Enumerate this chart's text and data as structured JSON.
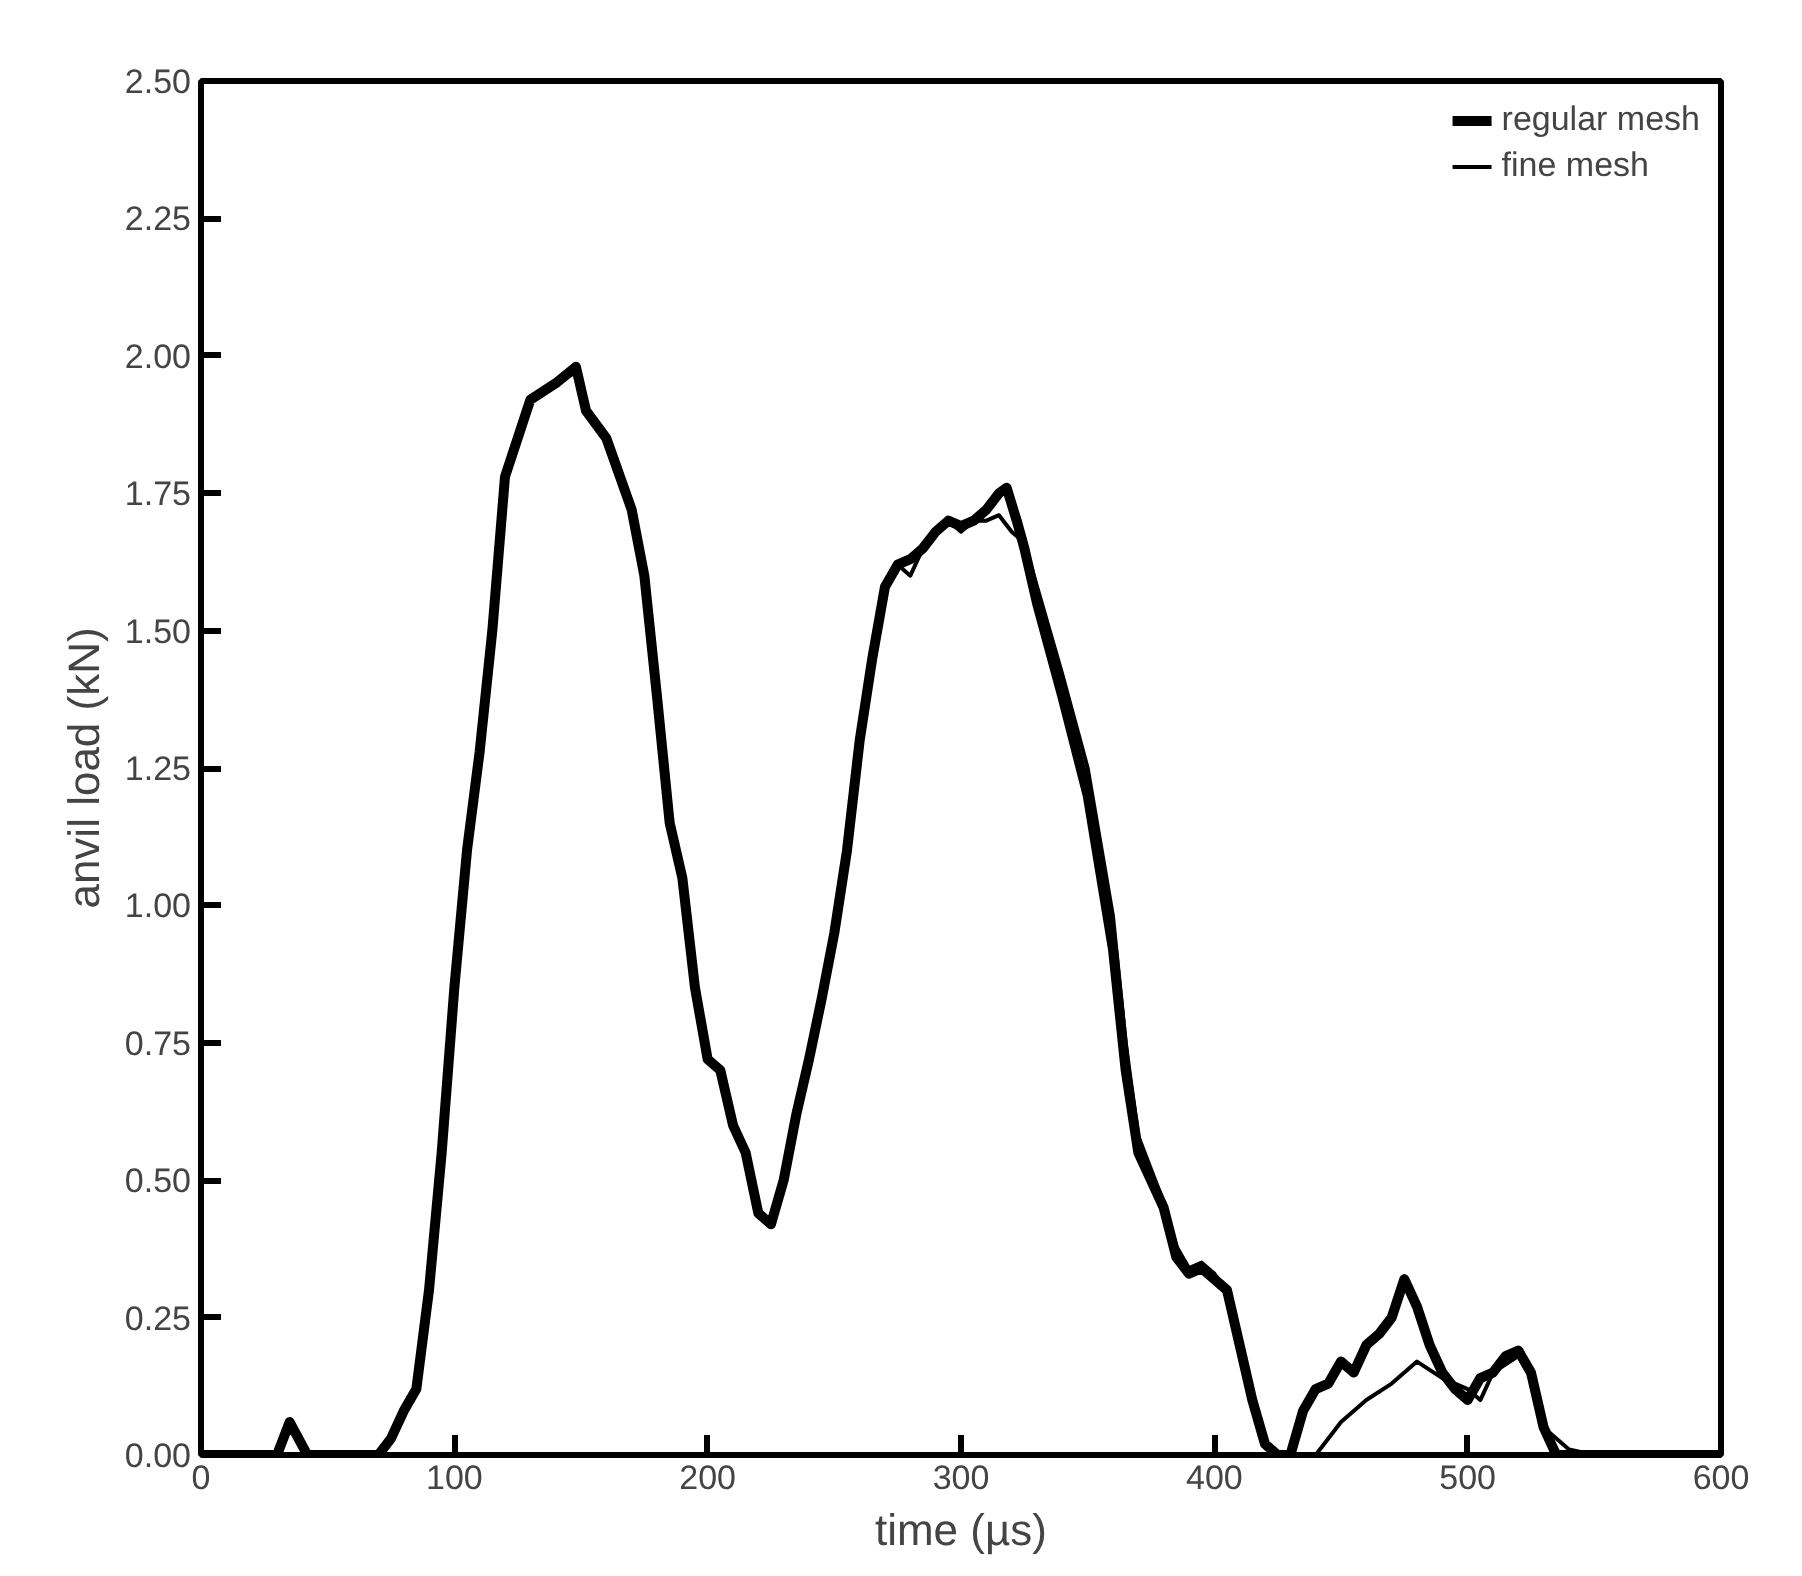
{
  "chart_data": {
    "type": "line",
    "xlabel": "time (µs)",
    "ylabel": "anvil load (kN)",
    "xlim": [
      0,
      600
    ],
    "ylim": [
      0,
      2.5
    ],
    "xticks": [
      0,
      100,
      200,
      300,
      400,
      500,
      600
    ],
    "yticks": [
      {
        "value": 0,
        "label": "0.00"
      },
      {
        "value": 0.25,
        "label": "0.25"
      },
      {
        "value": 0.5,
        "label": "0.50"
      },
      {
        "value": 0.75,
        "label": "0.75"
      },
      {
        "value": 1,
        "label": "1.00"
      },
      {
        "value": 1.25,
        "label": "1.25"
      },
      {
        "value": 1.5,
        "label": "1.50"
      },
      {
        "value": 1.75,
        "label": "1.75"
      },
      {
        "value": 2,
        "label": "2.00"
      },
      {
        "value": 2.25,
        "label": "2.25"
      },
      {
        "value": 2.5,
        "label": "2.50"
      }
    ],
    "grid": false,
    "legend": "top right",
    "line_style": "solid",
    "series": [
      {
        "name": "regular mesh",
        "color": "#000000",
        "x": [
          0,
          30,
          35,
          42,
          70,
          75,
          80,
          85,
          90,
          95,
          100,
          105,
          110,
          115,
          120,
          125,
          130,
          140,
          148,
          152,
          160,
          170,
          175,
          180,
          185,
          190,
          195,
          200,
          205,
          210,
          215,
          220,
          225,
          230,
          235,
          240,
          245,
          250,
          255,
          260,
          265,
          270,
          275,
          280,
          285,
          290,
          295,
          300,
          305,
          310,
          315,
          318,
          322,
          325,
          330,
          340,
          350,
          360,
          365,
          370,
          375,
          380,
          385,
          390,
          395,
          400,
          405,
          410,
          415,
          420,
          425,
          430,
          435,
          440,
          445,
          450,
          455,
          460,
          465,
          470,
          475,
          480,
          485,
          490,
          495,
          500,
          505,
          510,
          515,
          520,
          525,
          530,
          535,
          600
        ],
        "values": [
          0,
          0,
          0.06,
          0,
          0,
          0.03,
          0.08,
          0.12,
          0.3,
          0.55,
          0.85,
          1.1,
          1.28,
          1.5,
          1.78,
          1.85,
          1.92,
          1.95,
          1.98,
          1.9,
          1.85,
          1.72,
          1.6,
          1.38,
          1.15,
          1.05,
          0.85,
          0.72,
          0.7,
          0.6,
          0.55,
          0.44,
          0.42,
          0.5,
          0.62,
          0.72,
          0.83,
          0.95,
          1.1,
          1.3,
          1.45,
          1.58,
          1.62,
          1.63,
          1.65,
          1.68,
          1.7,
          1.69,
          1.7,
          1.72,
          1.75,
          1.76,
          1.7,
          1.65,
          1.55,
          1.38,
          1.2,
          0.92,
          0.7,
          0.55,
          0.5,
          0.45,
          0.36,
          0.33,
          0.34,
          0.32,
          0.3,
          0.2,
          0.1,
          0.02,
          0,
          0,
          0.08,
          0.12,
          0.13,
          0.17,
          0.15,
          0.2,
          0.22,
          0.25,
          0.32,
          0.27,
          0.2,
          0.15,
          0.12,
          0.1,
          0.14,
          0.15,
          0.18,
          0.19,
          0.15,
          0.05,
          0,
          0
        ]
      },
      {
        "name": "fine mesh",
        "color": "#000000",
        "x": [
          0,
          30,
          35,
          42,
          70,
          75,
          80,
          85,
          90,
          95,
          100,
          105,
          110,
          115,
          120,
          125,
          130,
          140,
          148,
          152,
          160,
          170,
          175,
          180,
          185,
          190,
          195,
          200,
          205,
          210,
          215,
          220,
          225,
          230,
          235,
          240,
          245,
          250,
          255,
          260,
          265,
          270,
          275,
          280,
          285,
          290,
          295,
          300,
          305,
          310,
          315,
          320,
          325,
          330,
          340,
          350,
          360,
          365,
          370,
          375,
          380,
          385,
          390,
          395,
          400,
          405,
          410,
          415,
          420,
          425,
          430,
          440,
          445,
          450,
          460,
          470,
          480,
          490,
          500,
          505,
          510,
          520,
          525,
          530,
          540,
          550,
          600
        ],
        "values": [
          0,
          0,
          0.06,
          0,
          0,
          0.03,
          0.08,
          0.12,
          0.3,
          0.55,
          0.85,
          1.1,
          1.28,
          1.5,
          1.78,
          1.85,
          1.92,
          1.95,
          1.97,
          1.9,
          1.85,
          1.72,
          1.6,
          1.38,
          1.15,
          1.05,
          0.85,
          0.72,
          0.7,
          0.6,
          0.55,
          0.44,
          0.42,
          0.5,
          0.62,
          0.72,
          0.83,
          0.95,
          1.1,
          1.3,
          1.45,
          1.58,
          1.62,
          1.6,
          1.65,
          1.68,
          1.7,
          1.68,
          1.7,
          1.7,
          1.71,
          1.68,
          1.66,
          1.58,
          1.42,
          1.25,
          0.98,
          0.75,
          0.58,
          0.52,
          0.46,
          0.38,
          0.34,
          0.35,
          0.33,
          0.3,
          0.2,
          0.1,
          0.02,
          0,
          0,
          0,
          0.03,
          0.06,
          0.1,
          0.13,
          0.17,
          0.14,
          0.12,
          0.1,
          0.15,
          0.18,
          0.14,
          0.05,
          0.01,
          0,
          0
        ]
      }
    ]
  }
}
